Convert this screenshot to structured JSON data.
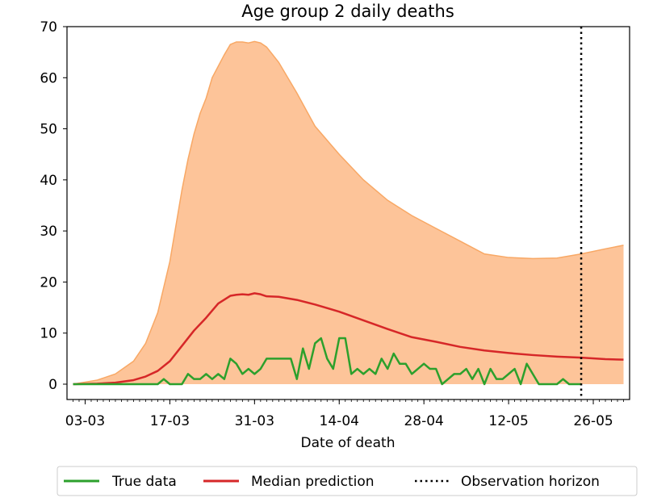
{
  "chart_data": {
    "type": "line",
    "title": "Age group 2 daily deaths",
    "xlabel": "Date of death",
    "ylabel": "",
    "ylim": [
      -3,
      70
    ],
    "yticks": [
      0,
      10,
      20,
      30,
      40,
      50,
      60,
      70
    ],
    "xlim": [
      "2020-02-29",
      "2020-06-01"
    ],
    "x_tick_labels": [
      {
        "date": "2020-03-03",
        "label": "03-03"
      },
      {
        "date": "2020-03-17",
        "label": "17-03"
      },
      {
        "date": "2020-03-31",
        "label": "31-03"
      },
      {
        "date": "2020-04-14",
        "label": "14-04"
      },
      {
        "date": "2020-04-28",
        "label": "28-04"
      },
      {
        "date": "2020-05-12",
        "label": "12-05"
      },
      {
        "date": "2020-05-26",
        "label": "26-05"
      }
    ],
    "observation_horizon": "2020-05-24",
    "band": {
      "name": "",
      "color": "#fdc499",
      "edge_color": "#f8a865",
      "x": [
        "2020-03-01",
        "2020-03-05",
        "2020-03-08",
        "2020-03-11",
        "2020-03-13",
        "2020-03-15",
        "2020-03-17",
        "2020-03-18",
        "2020-03-19",
        "2020-03-20",
        "2020-03-21",
        "2020-03-22",
        "2020-03-23",
        "2020-03-24",
        "2020-03-26",
        "2020-03-27",
        "2020-03-28",
        "2020-03-29",
        "2020-03-30",
        "2020-03-31",
        "2020-04-01",
        "2020-04-02",
        "2020-04-04",
        "2020-04-07",
        "2020-04-10",
        "2020-04-14",
        "2020-04-18",
        "2020-04-22",
        "2020-04-26",
        "2020-04-30",
        "2020-05-04",
        "2020-05-08",
        "2020-05-12",
        "2020-05-16",
        "2020-05-20",
        "2020-05-24",
        "2020-05-28",
        "2020-05-31"
      ],
      "upper": [
        0,
        0.8,
        2,
        4.5,
        8,
        14,
        24,
        31,
        38,
        44,
        49,
        53,
        56,
        60,
        64.5,
        66.5,
        67,
        67,
        66.8,
        67.1,
        66.8,
        66,
        63,
        57,
        50.5,
        45,
        40,
        36,
        33,
        30.5,
        28,
        25.5,
        24.8,
        24.6,
        24.7,
        25.5,
        26.5,
        27.2
      ],
      "lower": [
        0,
        0,
        0,
        0,
        0,
        0,
        0,
        0,
        0,
        0,
        0,
        0,
        0,
        0,
        0,
        0,
        0,
        0,
        0,
        0,
        0,
        0,
        0,
        0,
        0,
        0,
        0,
        0,
        0,
        0,
        0,
        0,
        0,
        0,
        0,
        0,
        0,
        0
      ]
    },
    "series": [
      {
        "name": "Median prediction",
        "color": "#d62728",
        "x": [
          "2020-03-01",
          "2020-03-05",
          "2020-03-08",
          "2020-03-11",
          "2020-03-13",
          "2020-03-15",
          "2020-03-17",
          "2020-03-19",
          "2020-03-21",
          "2020-03-23",
          "2020-03-25",
          "2020-03-27",
          "2020-03-28",
          "2020-03-29",
          "2020-03-30",
          "2020-03-31",
          "2020-04-01",
          "2020-04-02",
          "2020-04-04",
          "2020-04-07",
          "2020-04-10",
          "2020-04-14",
          "2020-04-18",
          "2020-04-22",
          "2020-04-26",
          "2020-04-30",
          "2020-05-04",
          "2020-05-08",
          "2020-05-12",
          "2020-05-16",
          "2020-05-20",
          "2020-05-24",
          "2020-05-28",
          "2020-05-31"
        ],
        "values": [
          0,
          0.1,
          0.3,
          0.8,
          1.5,
          2.6,
          4.5,
          7.5,
          10.5,
          13,
          15.8,
          17.3,
          17.5,
          17.6,
          17.5,
          17.8,
          17.6,
          17.2,
          17.1,
          16.5,
          15.6,
          14.2,
          12.5,
          10.8,
          9.2,
          8.3,
          7.3,
          6.6,
          6.1,
          5.7,
          5.4,
          5.2,
          4.9,
          4.8
        ]
      },
      {
        "name": "True data",
        "color": "#2ca02c",
        "x": [
          "2020-03-01",
          "2020-03-02",
          "2020-03-03",
          "2020-03-04",
          "2020-03-05",
          "2020-03-06",
          "2020-03-07",
          "2020-03-08",
          "2020-03-09",
          "2020-03-10",
          "2020-03-11",
          "2020-03-12",
          "2020-03-13",
          "2020-03-14",
          "2020-03-15",
          "2020-03-16",
          "2020-03-17",
          "2020-03-18",
          "2020-03-19",
          "2020-03-20",
          "2020-03-21",
          "2020-03-22",
          "2020-03-23",
          "2020-03-24",
          "2020-03-25",
          "2020-03-26",
          "2020-03-27",
          "2020-03-28",
          "2020-03-29",
          "2020-03-30",
          "2020-03-31",
          "2020-04-01",
          "2020-04-02",
          "2020-04-03",
          "2020-04-04",
          "2020-04-05",
          "2020-04-06",
          "2020-04-07",
          "2020-04-08",
          "2020-04-09",
          "2020-04-10",
          "2020-04-11",
          "2020-04-12",
          "2020-04-13",
          "2020-04-14",
          "2020-04-15",
          "2020-04-16",
          "2020-04-17",
          "2020-04-18",
          "2020-04-19",
          "2020-04-20",
          "2020-04-21",
          "2020-04-22",
          "2020-04-23",
          "2020-04-24",
          "2020-04-25",
          "2020-04-26",
          "2020-04-27",
          "2020-04-28",
          "2020-04-29",
          "2020-04-30",
          "2020-05-01",
          "2020-05-02",
          "2020-05-03",
          "2020-05-04",
          "2020-05-05",
          "2020-05-06",
          "2020-05-07",
          "2020-05-08",
          "2020-05-09",
          "2020-05-10",
          "2020-05-11",
          "2020-05-12",
          "2020-05-13",
          "2020-05-14",
          "2020-05-15",
          "2020-05-16",
          "2020-05-17",
          "2020-05-18",
          "2020-05-19",
          "2020-05-20",
          "2020-05-21",
          "2020-05-22",
          "2020-05-23",
          "2020-05-24"
        ],
        "values": [
          0,
          0,
          0,
          0,
          0,
          0,
          0,
          0,
          0,
          0,
          0,
          0,
          0,
          0,
          0,
          1,
          0,
          0,
          0,
          2,
          1,
          1,
          2,
          1,
          2,
          1,
          5,
          4,
          2,
          3,
          2,
          3,
          5,
          5,
          5,
          5,
          5,
          1,
          7,
          3,
          8,
          9,
          5,
          3,
          9,
          9,
          2,
          3,
          2,
          3,
          2,
          5,
          3,
          6,
          4,
          4,
          2,
          3,
          4,
          3,
          3,
          0,
          1,
          2,
          2,
          3,
          1,
          3,
          0,
          3,
          1,
          1,
          2,
          3,
          0,
          4,
          2,
          0,
          0,
          0,
          0,
          1,
          0,
          0,
          0
        ]
      }
    ],
    "legend": {
      "placement": "bottom-center",
      "entries": [
        {
          "label": "True data",
          "color": "#2ca02c",
          "style": "solid"
        },
        {
          "label": "Median prediction",
          "color": "#d62728",
          "style": "solid"
        },
        {
          "label": "Observation horizon",
          "color": "#000000",
          "style": "dotted"
        }
      ]
    },
    "grid": false
  }
}
